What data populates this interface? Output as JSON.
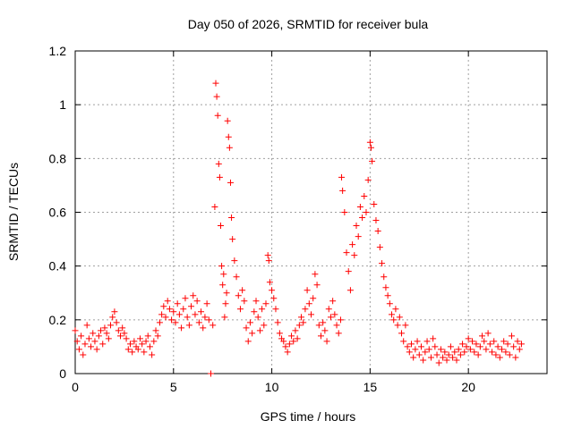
{
  "chart_data": {
    "type": "scatter",
    "title": "Day 050 of 2026, SRMTID for receiver bula",
    "xlabel": "GPS time / hours",
    "ylabel": "SRMTID / TECUs",
    "xlim": [
      0,
      24
    ],
    "ylim": [
      0,
      1.2
    ],
    "x_ticks": [
      0,
      5,
      10,
      15,
      20
    ],
    "x_tick_labels": [
      "0",
      "5",
      "10",
      "15",
      "20"
    ],
    "y_ticks": [
      0,
      0.2,
      0.4,
      0.6,
      0.8,
      1.0,
      1.2
    ],
    "y_tick_labels": [
      "0",
      "0.2",
      "0.4",
      "0.6",
      "0.8",
      "1",
      "1.2"
    ],
    "grid": true,
    "marker": "+",
    "color": "#ff0000",
    "series": [
      {
        "name": "SRMTID",
        "points": [
          [
            0.0,
            0.16
          ],
          [
            0.1,
            0.12
          ],
          [
            0.2,
            0.09
          ],
          [
            0.3,
            0.14
          ],
          [
            0.4,
            0.07
          ],
          [
            0.5,
            0.11
          ],
          [
            0.6,
            0.18
          ],
          [
            0.7,
            0.13
          ],
          [
            0.8,
            0.1
          ],
          [
            0.9,
            0.15
          ],
          [
            1.0,
            0.12
          ],
          [
            1.1,
            0.09
          ],
          [
            1.2,
            0.14
          ],
          [
            1.3,
            0.16
          ],
          [
            1.4,
            0.11
          ],
          [
            1.5,
            0.17
          ],
          [
            1.6,
            0.15
          ],
          [
            1.7,
            0.13
          ],
          [
            1.8,
            0.18
          ],
          [
            1.9,
            0.21
          ],
          [
            2.0,
            0.23
          ],
          [
            2.1,
            0.19
          ],
          [
            2.2,
            0.16
          ],
          [
            2.3,
            0.14
          ],
          [
            2.4,
            0.17
          ],
          [
            2.5,
            0.15
          ],
          [
            2.6,
            0.13
          ],
          [
            2.7,
            0.09
          ],
          [
            2.8,
            0.11
          ],
          [
            2.9,
            0.08
          ],
          [
            3.0,
            0.12
          ],
          [
            3.1,
            0.1
          ],
          [
            3.2,
            0.09
          ],
          [
            3.3,
            0.13
          ],
          [
            3.4,
            0.11
          ],
          [
            3.5,
            0.08
          ],
          [
            3.6,
            0.12
          ],
          [
            3.7,
            0.14
          ],
          [
            3.8,
            0.1
          ],
          [
            3.9,
            0.07
          ],
          [
            4.0,
            0.12
          ],
          [
            4.1,
            0.16
          ],
          [
            4.2,
            0.14
          ],
          [
            4.3,
            0.19
          ],
          [
            4.4,
            0.22
          ],
          [
            4.5,
            0.25
          ],
          [
            4.6,
            0.21
          ],
          [
            4.7,
            0.27
          ],
          [
            4.8,
            0.24
          ],
          [
            4.9,
            0.2
          ],
          [
            5.0,
            0.23
          ],
          [
            5.1,
            0.19
          ],
          [
            5.2,
            0.26
          ],
          [
            5.3,
            0.22
          ],
          [
            5.4,
            0.17
          ],
          [
            5.5,
            0.24
          ],
          [
            5.6,
            0.28
          ],
          [
            5.7,
            0.21
          ],
          [
            5.8,
            0.18
          ],
          [
            5.9,
            0.25
          ],
          [
            6.0,
            0.29
          ],
          [
            6.1,
            0.22
          ],
          [
            6.2,
            0.27
          ],
          [
            6.3,
            0.19
          ],
          [
            6.4,
            0.23
          ],
          [
            6.5,
            0.17
          ],
          [
            6.6,
            0.21
          ],
          [
            6.7,
            0.26
          ],
          [
            6.8,
            0.2
          ],
          [
            6.9,
            0.0
          ],
          [
            7.0,
            0.18
          ],
          [
            7.1,
            0.62
          ],
          [
            7.15,
            1.08
          ],
          [
            7.2,
            1.03
          ],
          [
            7.25,
            0.96
          ],
          [
            7.3,
            0.78
          ],
          [
            7.35,
            0.73
          ],
          [
            7.4,
            0.55
          ],
          [
            7.45,
            0.4
          ],
          [
            7.5,
            0.33
          ],
          [
            7.55,
            0.37
          ],
          [
            7.6,
            0.21
          ],
          [
            7.65,
            0.26
          ],
          [
            7.7,
            0.3
          ],
          [
            7.75,
            0.94
          ],
          [
            7.8,
            0.88
          ],
          [
            7.85,
            0.84
          ],
          [
            7.9,
            0.71
          ],
          [
            7.95,
            0.58
          ],
          [
            8.0,
            0.5
          ],
          [
            8.1,
            0.42
          ],
          [
            8.2,
            0.36
          ],
          [
            8.3,
            0.29
          ],
          [
            8.4,
            0.24
          ],
          [
            8.5,
            0.31
          ],
          [
            8.6,
            0.27
          ],
          [
            8.7,
            0.17
          ],
          [
            8.8,
            0.12
          ],
          [
            8.9,
            0.19
          ],
          [
            9.0,
            0.15
          ],
          [
            9.1,
            0.23
          ],
          [
            9.2,
            0.27
          ],
          [
            9.3,
            0.21
          ],
          [
            9.4,
            0.16
          ],
          [
            9.5,
            0.24
          ],
          [
            9.6,
            0.18
          ],
          [
            9.7,
            0.26
          ],
          [
            9.8,
            0.44
          ],
          [
            9.85,
            0.42
          ],
          [
            9.9,
            0.34
          ],
          [
            10.0,
            0.31
          ],
          [
            10.1,
            0.28
          ],
          [
            10.2,
            0.24
          ],
          [
            10.3,
            0.19
          ],
          [
            10.4,
            0.15
          ],
          [
            10.5,
            0.13
          ],
          [
            10.6,
            0.12
          ],
          [
            10.7,
            0.1
          ],
          [
            10.8,
            0.08
          ],
          [
            10.9,
            0.11
          ],
          [
            11.0,
            0.14
          ],
          [
            11.1,
            0.12
          ],
          [
            11.2,
            0.16
          ],
          [
            11.3,
            0.13
          ],
          [
            11.4,
            0.18
          ],
          [
            11.5,
            0.21
          ],
          [
            11.6,
            0.19
          ],
          [
            11.7,
            0.24
          ],
          [
            11.8,
            0.31
          ],
          [
            11.9,
            0.26
          ],
          [
            12.0,
            0.22
          ],
          [
            12.1,
            0.28
          ],
          [
            12.2,
            0.37
          ],
          [
            12.3,
            0.33
          ],
          [
            12.4,
            0.18
          ],
          [
            12.5,
            0.14
          ],
          [
            12.6,
            0.19
          ],
          [
            12.7,
            0.16
          ],
          [
            12.8,
            0.12
          ],
          [
            12.9,
            0.24
          ],
          [
            13.0,
            0.21
          ],
          [
            13.1,
            0.27
          ],
          [
            13.2,
            0.22
          ],
          [
            13.3,
            0.18
          ],
          [
            13.4,
            0.15
          ],
          [
            13.5,
            0.2
          ],
          [
            13.55,
            0.73
          ],
          [
            13.6,
            0.68
          ],
          [
            13.7,
            0.6
          ],
          [
            13.8,
            0.45
          ],
          [
            13.9,
            0.38
          ],
          [
            14.0,
            0.31
          ],
          [
            14.1,
            0.48
          ],
          [
            14.2,
            0.44
          ],
          [
            14.3,
            0.55
          ],
          [
            14.4,
            0.51
          ],
          [
            14.5,
            0.62
          ],
          [
            14.6,
            0.58
          ],
          [
            14.7,
            0.66
          ],
          [
            14.8,
            0.6
          ],
          [
            14.9,
            0.72
          ],
          [
            15.0,
            0.86
          ],
          [
            15.05,
            0.84
          ],
          [
            15.1,
            0.79
          ],
          [
            15.2,
            0.63
          ],
          [
            15.3,
            0.57
          ],
          [
            15.4,
            0.53
          ],
          [
            15.5,
            0.47
          ],
          [
            15.6,
            0.41
          ],
          [
            15.7,
            0.36
          ],
          [
            15.8,
            0.32
          ],
          [
            15.9,
            0.29
          ],
          [
            16.0,
            0.26
          ],
          [
            16.1,
            0.22
          ],
          [
            16.2,
            0.2
          ],
          [
            16.3,
            0.24
          ],
          [
            16.4,
            0.18
          ],
          [
            16.5,
            0.21
          ],
          [
            16.6,
            0.15
          ],
          [
            16.7,
            0.12
          ],
          [
            16.8,
            0.18
          ],
          [
            16.9,
            0.1
          ],
          [
            17.0,
            0.08
          ],
          [
            17.1,
            0.11
          ],
          [
            17.2,
            0.06
          ],
          [
            17.3,
            0.09
          ],
          [
            17.4,
            0.12
          ],
          [
            17.5,
            0.07
          ],
          [
            17.6,
            0.1
          ],
          [
            17.7,
            0.05
          ],
          [
            17.8,
            0.08
          ],
          [
            17.9,
            0.12
          ],
          [
            18.0,
            0.09
          ],
          [
            18.1,
            0.06
          ],
          [
            18.2,
            0.13
          ],
          [
            18.3,
            0.1
          ],
          [
            18.4,
            0.07
          ],
          [
            18.5,
            0.04
          ],
          [
            18.6,
            0.09
          ],
          [
            18.7,
            0.06
          ],
          [
            18.8,
            0.08
          ],
          [
            18.9,
            0.05
          ],
          [
            19.0,
            0.07
          ],
          [
            19.1,
            0.1
          ],
          [
            19.2,
            0.06
          ],
          [
            19.3,
            0.08
          ],
          [
            19.4,
            0.05
          ],
          [
            19.5,
            0.09
          ],
          [
            19.6,
            0.07
          ],
          [
            19.7,
            0.11
          ],
          [
            19.8,
            0.08
          ],
          [
            19.9,
            0.1
          ],
          [
            20.0,
            0.13
          ],
          [
            20.1,
            0.09
          ],
          [
            20.2,
            0.12
          ],
          [
            20.3,
            0.08
          ],
          [
            20.4,
            0.11
          ],
          [
            20.5,
            0.07
          ],
          [
            20.6,
            0.1
          ],
          [
            20.7,
            0.14
          ],
          [
            20.8,
            0.12
          ],
          [
            20.9,
            0.09
          ],
          [
            21.0,
            0.15
          ],
          [
            21.1,
            0.11
          ],
          [
            21.2,
            0.08
          ],
          [
            21.3,
            0.12
          ],
          [
            21.4,
            0.07
          ],
          [
            21.5,
            0.1
          ],
          [
            21.6,
            0.06
          ],
          [
            21.7,
            0.09
          ],
          [
            21.8,
            0.12
          ],
          [
            21.9,
            0.08
          ],
          [
            22.0,
            0.11
          ],
          [
            22.1,
            0.07
          ],
          [
            22.2,
            0.14
          ],
          [
            22.3,
            0.1
          ],
          [
            22.4,
            0.06
          ],
          [
            22.5,
            0.12
          ],
          [
            22.6,
            0.09
          ],
          [
            22.7,
            0.11
          ]
        ]
      }
    ]
  }
}
